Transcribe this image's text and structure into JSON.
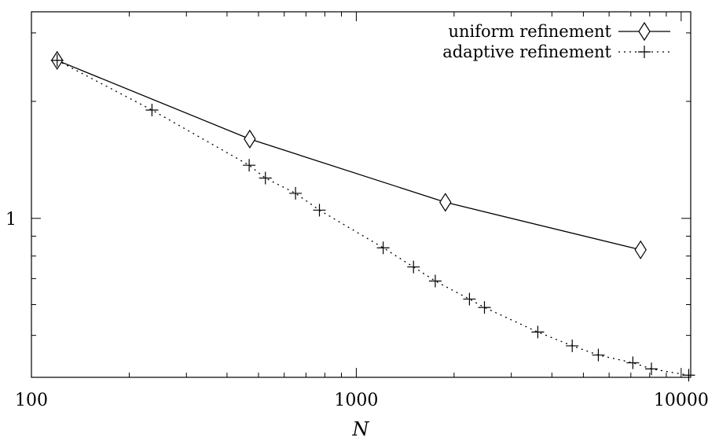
{
  "chart_data": {
    "type": "line",
    "title": "",
    "xlabel": "N",
    "ylabel": "",
    "xscale": "log",
    "yscale": "log",
    "xlim": [
      100,
      10700
    ],
    "ylim": [
      0.39,
      3.4
    ],
    "x_ticks": [
      100,
      1000,
      10000
    ],
    "x_tick_labels": [
      "100",
      "1000",
      "10000"
    ],
    "y_major_ticks": [
      1
    ],
    "y_tick_labels": [
      "1"
    ],
    "y_minor_ticks": [
      0.5,
      0.6,
      0.7,
      0.8,
      0.9,
      2,
      3
    ],
    "grid": false,
    "legend_position": "top-right",
    "series": [
      {
        "name": "uniform refinement",
        "line_style": "solid",
        "marker": "diamond",
        "color": "#000000",
        "points": [
          {
            "x": 120,
            "y": 2.55
          },
          {
            "x": 470,
            "y": 1.6
          },
          {
            "x": 1880,
            "y": 1.1
          },
          {
            "x": 7500,
            "y": 0.83
          }
        ]
      },
      {
        "name": "adaptive refinement",
        "line_style": "dotted",
        "marker": "plus",
        "color": "#000000",
        "points": [
          {
            "x": 120,
            "y": 2.55
          },
          {
            "x": 235,
            "y": 1.9
          },
          {
            "x": 468,
            "y": 1.37
          },
          {
            "x": 525,
            "y": 1.27
          },
          {
            "x": 650,
            "y": 1.16
          },
          {
            "x": 770,
            "y": 1.05
          },
          {
            "x": 1210,
            "y": 0.84
          },
          {
            "x": 1500,
            "y": 0.75
          },
          {
            "x": 1750,
            "y": 0.69
          },
          {
            "x": 2230,
            "y": 0.62
          },
          {
            "x": 2480,
            "y": 0.59
          },
          {
            "x": 3620,
            "y": 0.51
          },
          {
            "x": 4620,
            "y": 0.47
          },
          {
            "x": 5560,
            "y": 0.445
          },
          {
            "x": 7100,
            "y": 0.425
          },
          {
            "x": 8100,
            "y": 0.41
          },
          {
            "x": 10550,
            "y": 0.395
          }
        ]
      }
    ]
  }
}
